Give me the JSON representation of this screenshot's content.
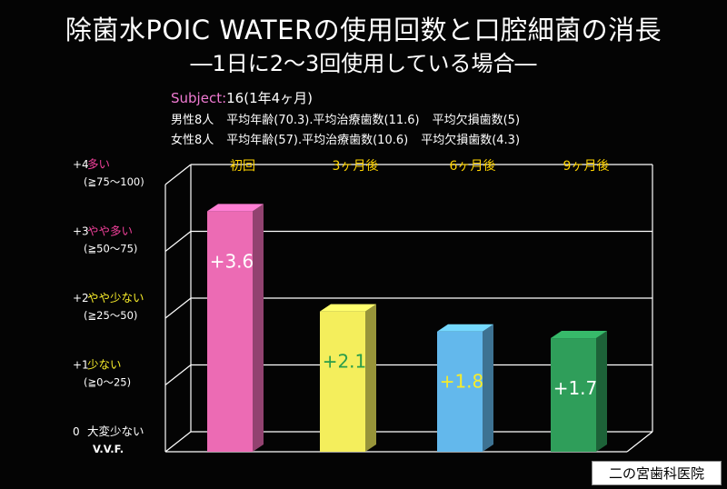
{
  "title": "除菌水POIC WATERの使用回数と口腔細菌の消長",
  "subtitle": "―1日に2～3回使用している場合―",
  "subject": {
    "label": "Subject:",
    "value": "16",
    "note": "(1年4ヶ月)"
  },
  "male": {
    "count": "男性8人",
    "age": "平均年齢(70.3).",
    "treated": "平均治療歯数(11.6)",
    "missing": "平均欠損歯数(5)"
  },
  "female": {
    "count": "女性8人",
    "age": "平均年齢(57).",
    "treated": "平均治療歯数(10.6)",
    "missing": "平均欠損歯数(4.3)"
  },
  "clinic": "二の宮歯科医院",
  "chart_data": {
    "type": "bar",
    "categories": [
      "初回",
      "3ヶ月後",
      "6ヶ月後",
      "9ヶ月後"
    ],
    "values": [
      3.6,
      2.1,
      1.8,
      1.7
    ],
    "value_labels": [
      "+3.6",
      "+2.1",
      "+1.8",
      "+1.7"
    ],
    "ylim": [
      0,
      4
    ],
    "grid": true,
    "colors": [
      "#ec6bb4",
      "#f4ee5c",
      "#63b8ec",
      "#2f9e5a"
    ],
    "label_colors": [
      "#ffd400",
      "#ffd400",
      "#ffd400",
      "#ffd400"
    ],
    "value_label_colors": [
      "#ffffff",
      "#2a9d4a",
      "#f7ec2a",
      "#ffffff"
    ],
    "levels": [
      {
        "num": "0",
        "label": "大変少ない",
        "range": "V.V.F.",
        "label_color": "#ffffff",
        "range_color": "#3d7fe0"
      },
      {
        "num": "+1",
        "label": "少ない",
        "range": "(≧0～25)",
        "label_color": "#f7ec2a",
        "range_color": "#ffffff"
      },
      {
        "num": "+2",
        "label": "やや少ない",
        "range": "(≧25～50)",
        "label_color": "#f7ec2a",
        "range_color": "#ffffff"
      },
      {
        "num": "+3",
        "label": "やや多い",
        "range": "(≧50～75)",
        "label_color": "#f0409a",
        "range_color": "#ffffff"
      },
      {
        "num": "+4",
        "label": "多い",
        "range": "(≧75～100)",
        "label_color": "#f0409a",
        "range_color": "#ffffff"
      }
    ]
  }
}
